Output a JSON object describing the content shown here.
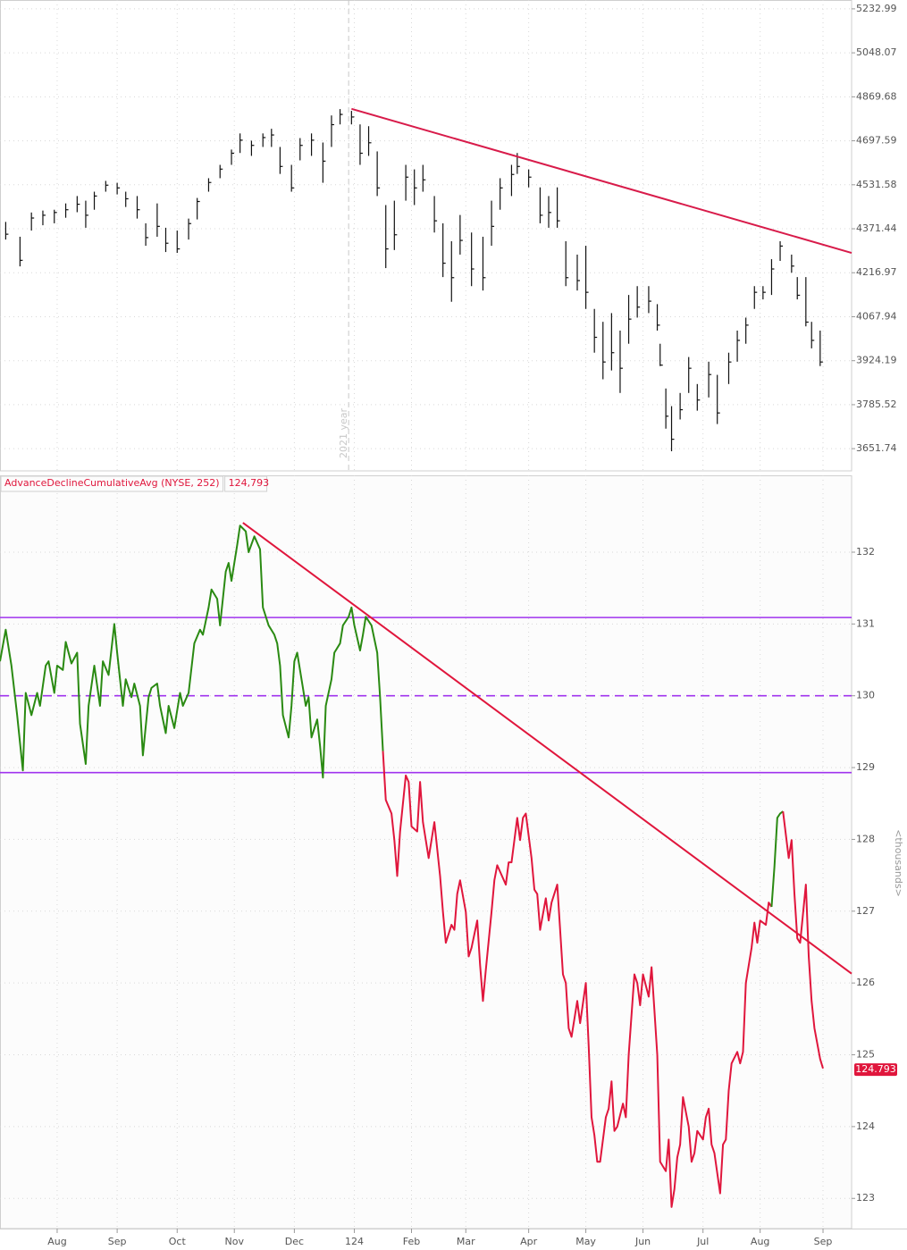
{
  "chart_data": [
    {
      "type": "hlc",
      "color": "#111111",
      "log_scale": true,
      "grid": true,
      "xlim": [
        0,
        298
      ],
      "ylim": [
        3586,
        5271
      ],
      "yticks": [
        3651.74,
        3785.52,
        3924.19,
        4067.94,
        4216.97,
        4371.44,
        4531.58,
        4697.59,
        4869.68,
        5048.07,
        5232.99
      ],
      "x": [
        2,
        7,
        11,
        15,
        19,
        23,
        27,
        30,
        33,
        37,
        41,
        44,
        48,
        51,
        55,
        58,
        62,
        66,
        69,
        73,
        77,
        81,
        84,
        88,
        92,
        95,
        98,
        102,
        105,
        109,
        113,
        116,
        119,
        123,
        126,
        129,
        132,
        135,
        138,
        142,
        145,
        148,
        152,
        155,
        158,
        161,
        165,
        169,
        172,
        175,
        179,
        181,
        185,
        189,
        192,
        195,
        198,
        202,
        205,
        208,
        211,
        214,
        217,
        220,
        223,
        227,
        230,
        231,
        233,
        235,
        238,
        241,
        244,
        248,
        251,
        255,
        258,
        261,
        264,
        267,
        270,
        273,
        277,
        279,
        282,
        284,
        287
      ],
      "high": [
        4396,
        4343,
        4430,
        4437,
        4440,
        4463,
        4490,
        4473,
        4506,
        4546,
        4539,
        4506,
        4490,
        4391,
        4463,
        4375,
        4365,
        4408,
        4483,
        4556,
        4606,
        4664,
        4726,
        4698,
        4726,
        4744,
        4674,
        4606,
        4708,
        4726,
        4691,
        4796,
        4821,
        4814,
        4761,
        4754,
        4657,
        4457,
        4473,
        4606,
        4589,
        4606,
        4490,
        4391,
        4327,
        4421,
        4358,
        4343,
        4473,
        4556,
        4606,
        4651,
        4589,
        4522,
        4490,
        4522,
        4327,
        4280,
        4311,
        4094,
        4051,
        4080,
        4022,
        4141,
        4171,
        4171,
        4110,
        3979,
        3836,
        3781,
        3822,
        3936,
        3850,
        3921,
        3879,
        3950,
        4022,
        4065,
        4171,
        4171,
        4264,
        4327,
        4280,
        4202,
        4202,
        4051,
        4022
      ],
      "low": [
        4333,
        4239,
        4365,
        4384,
        4391,
        4411,
        4431,
        4375,
        4440,
        4506,
        4496,
        4450,
        4408,
        4311,
        4343,
        4289,
        4286,
        4333,
        4405,
        4506,
        4556,
        4606,
        4651,
        4640,
        4674,
        4674,
        4572,
        4506,
        4623,
        4640,
        4539,
        4674,
        4761,
        4761,
        4606,
        4640,
        4490,
        4233,
        4296,
        4473,
        4457,
        4506,
        4358,
        4202,
        4118,
        4280,
        4171,
        4156,
        4311,
        4440,
        4490,
        4572,
        4522,
        4391,
        4375,
        4375,
        4171,
        4156,
        4094,
        3950,
        3865,
        3893,
        3822,
        3979,
        4065,
        4080,
        4022,
        3907,
        3712,
        3644,
        3740,
        3822,
        3767,
        3808,
        3726,
        3850,
        3921,
        3979,
        4094,
        4126,
        4141,
        4258,
        4217,
        4126,
        4036,
        3964,
        3907
      ],
      "close": [
        4352,
        4260,
        4410,
        4420,
        4430,
        4440,
        4460,
        4420,
        4490,
        4530,
        4520,
        4480,
        4440,
        4340,
        4380,
        4320,
        4300,
        4390,
        4470,
        4540,
        4590,
        4650,
        4700,
        4680,
        4710,
        4720,
        4600,
        4520,
        4680,
        4700,
        4620,
        4760,
        4800,
        4790,
        4650,
        4690,
        4520,
        4300,
        4350,
        4560,
        4520,
        4550,
        4400,
        4250,
        4200,
        4330,
        4230,
        4200,
        4380,
        4520,
        4570,
        4600,
        4560,
        4420,
        4430,
        4400,
        4200,
        4190,
        4150,
        4000,
        3920,
        3950,
        3900,
        4060,
        4100,
        4120,
        4040,
        3910,
        3750,
        3680,
        3770,
        3900,
        3800,
        3880,
        3760,
        3920,
        3990,
        4040,
        4150,
        4150,
        4230,
        4310,
        4240,
        4140,
        4050,
        3990,
        3920
      ],
      "trendline": {
        "x": [
          123,
          298
        ],
        "y": [
          4822,
          4286
        ],
        "color": "#d81b4a"
      },
      "year_marker": {
        "x": 122,
        "label": "2021 year"
      }
    },
    {
      "type": "line",
      "title": "AdvanceDeclineCumulativeAvg (NYSE, 252)",
      "current": {
        "value": 124.793,
        "label": "124,793"
      },
      "last_label": {
        "value": 124.793,
        "label": "124.793"
      },
      "y_axis_label": "<thousands>",
      "grid": true,
      "xlim": [
        0,
        298
      ],
      "ylim": [
        122.58,
        133.07
      ],
      "xticks": [
        {
          "value": 20,
          "label": "Aug"
        },
        {
          "value": 41,
          "label": "Sep"
        },
        {
          "value": 62,
          "label": "Oct"
        },
        {
          "value": 82,
          "label": "Nov"
        },
        {
          "value": 103,
          "label": "Dec"
        },
        124,
        {
          "value": 144,
          "label": "Feb"
        },
        {
          "value": 163,
          "label": "Mar"
        },
        {
          "value": 185,
          "label": "Apr"
        },
        {
          "value": 205,
          "label": "May"
        },
        {
          "value": 225,
          "label": "Jun"
        },
        {
          "value": 246,
          "label": "Jul"
        },
        {
          "value": 266,
          "label": "Aug"
        },
        {
          "value": 288,
          "label": "Sep"
        }
      ],
      "yticks": [
        123,
        124,
        125,
        126,
        127,
        128,
        129,
        130,
        131,
        132
      ],
      "hlines": [
        {
          "value": 131.09,
          "color": "#a033ee",
          "dashed": false
        },
        {
          "value": 130,
          "color": "#a033ee",
          "dashed": true
        },
        {
          "value": 128.93,
          "color": "#a033ee",
          "dashed": false
        }
      ],
      "trendline": {
        "x": [
          85,
          298
        ],
        "y": [
          132.41,
          126.13
        ],
        "color": "#e0163c"
      },
      "series": [
        {
          "color": "#2a8a12",
          "x": [
            0,
            2,
            4,
            6,
            8,
            9,
            11,
            13,
            14,
            16,
            17,
            19,
            20,
            22,
            23,
            25,
            27,
            28,
            30,
            31,
            33,
            35,
            36,
            38,
            40,
            41,
            43,
            44,
            46,
            47,
            49,
            50,
            52,
            53,
            55,
            56,
            58,
            59,
            61,
            63,
            64,
            66,
            68,
            70,
            71,
            73,
            74,
            76,
            77,
            79,
            80,
            81,
            83,
            84,
            86,
            87,
            89,
            91,
            92,
            94,
            96,
            97,
            98,
            99,
            101,
            102,
            103,
            104,
            106,
            107,
            108,
            109,
            111,
            112,
            113,
            114,
            116,
            117,
            119,
            120,
            122,
            123,
            124,
            126,
            127,
            128,
            130,
            132,
            133,
            134
          ],
          "values": [
            130.48,
            130.92,
            130.42,
            129.73,
            128.96,
            130.04,
            129.73,
            130.04,
            129.86,
            130.42,
            130.48,
            130.04,
            130.42,
            130.36,
            130.75,
            130.45,
            130.6,
            129.61,
            129.05,
            129.86,
            130.42,
            129.86,
            130.48,
            130.29,
            131.0,
            130.6,
            129.86,
            130.23,
            129.98,
            130.17,
            129.86,
            129.17,
            129.98,
            130.11,
            130.17,
            129.86,
            129.48,
            129.86,
            129.55,
            130.04,
            129.86,
            130.04,
            130.73,
            130.92,
            130.85,
            131.23,
            131.48,
            131.35,
            130.98,
            131.73,
            131.85,
            131.6,
            132.1,
            132.37,
            132.29,
            132.0,
            132.22,
            132.04,
            131.23,
            130.98,
            130.85,
            130.73,
            130.42,
            129.73,
            129.42,
            129.86,
            130.48,
            130.6,
            130.11,
            129.86,
            129.98,
            129.42,
            129.67,
            129.3,
            128.86,
            129.86,
            130.23,
            130.6,
            130.73,
            130.98,
            131.1,
            131.23,
            130.98,
            130.63,
            130.85,
            131.1,
            130.98,
            130.6,
            129.98,
            129.23
          ]
        },
        {
          "color": "#e0163c",
          "x": [
            134,
            135,
            137,
            138,
            139,
            140,
            142,
            143,
            144,
            146,
            147,
            148,
            150,
            151,
            152,
            154,
            155,
            156,
            158,
            159,
            160,
            161,
            163,
            164,
            165,
            167,
            168,
            169,
            170,
            172,
            173,
            174,
            175,
            177,
            178,
            179,
            181,
            182,
            183,
            184,
            186,
            187,
            188,
            189,
            191,
            192,
            193,
            195,
            197,
            198,
            199,
            200,
            202,
            203,
            205,
            206,
            207,
            208,
            209,
            210,
            212,
            213,
            214,
            215,
            216,
            218,
            219,
            220,
            222,
            223,
            224,
            225,
            227,
            228,
            229,
            230,
            231,
            233,
            234,
            235,
            236,
            237,
            238,
            239,
            241,
            242,
            243,
            244,
            246,
            247,
            248,
            249,
            250,
            252,
            253,
            254,
            255,
            256,
            258,
            259,
            260,
            261,
            263,
            264,
            265,
            266,
            268,
            269,
            270
          ],
          "values": [
            129.23,
            128.55,
            128.36,
            127.99,
            127.49,
            128.11,
            128.89,
            128.8,
            128.18,
            128.11,
            128.8,
            128.24,
            127.74,
            127.99,
            128.24,
            127.49,
            126.99,
            126.56,
            126.81,
            126.74,
            127.24,
            127.43,
            126.99,
            126.37,
            126.49,
            126.87,
            126.25,
            125.75,
            126.18,
            126.99,
            127.43,
            127.64,
            127.55,
            127.37,
            127.68,
            127.68,
            128.3,
            127.99,
            128.3,
            128.36,
            127.74,
            127.3,
            127.24,
            126.74,
            127.18,
            126.87,
            127.12,
            127.37,
            126.12,
            126.0,
            125.37,
            125.25,
            125.75,
            125.44,
            126.0,
            125.12,
            124.13,
            123.88,
            123.51,
            123.51,
            124.13,
            124.25,
            124.63,
            123.94,
            124.0,
            124.32,
            124.13,
            125.0,
            126.12,
            126.0,
            125.69,
            126.12,
            125.81,
            126.22,
            125.62,
            125.0,
            123.51,
            123.38,
            123.82,
            122.88,
            123.13,
            123.57,
            123.75,
            124.41,
            124.0,
            123.51,
            123.63,
            123.94,
            123.82,
            124.13,
            124.25,
            123.75,
            123.63,
            123.07,
            123.75,
            123.82,
            124.5,
            124.88,
            125.04,
            124.88,
            125.04,
            126.0,
            126.49,
            126.84,
            126.56,
            126.87,
            126.81,
            127.12,
            127.06
          ]
        },
        {
          "color": "#2a8a12",
          "x": [
            270,
            271,
            272,
            273,
            274
          ],
          "values": [
            127.06,
            127.62,
            128.3,
            128.36,
            128.39
          ]
        },
        {
          "color": "#e0163c",
          "x": [
            274,
            276,
            277,
            278,
            279,
            280,
            282,
            283,
            284,
            285,
            287,
            288
          ],
          "values": [
            128.39,
            127.74,
            127.99,
            127.24,
            126.62,
            126.56,
            127.37,
            126.37,
            125.75,
            125.37,
            124.94,
            124.81
          ]
        }
      ]
    }
  ]
}
